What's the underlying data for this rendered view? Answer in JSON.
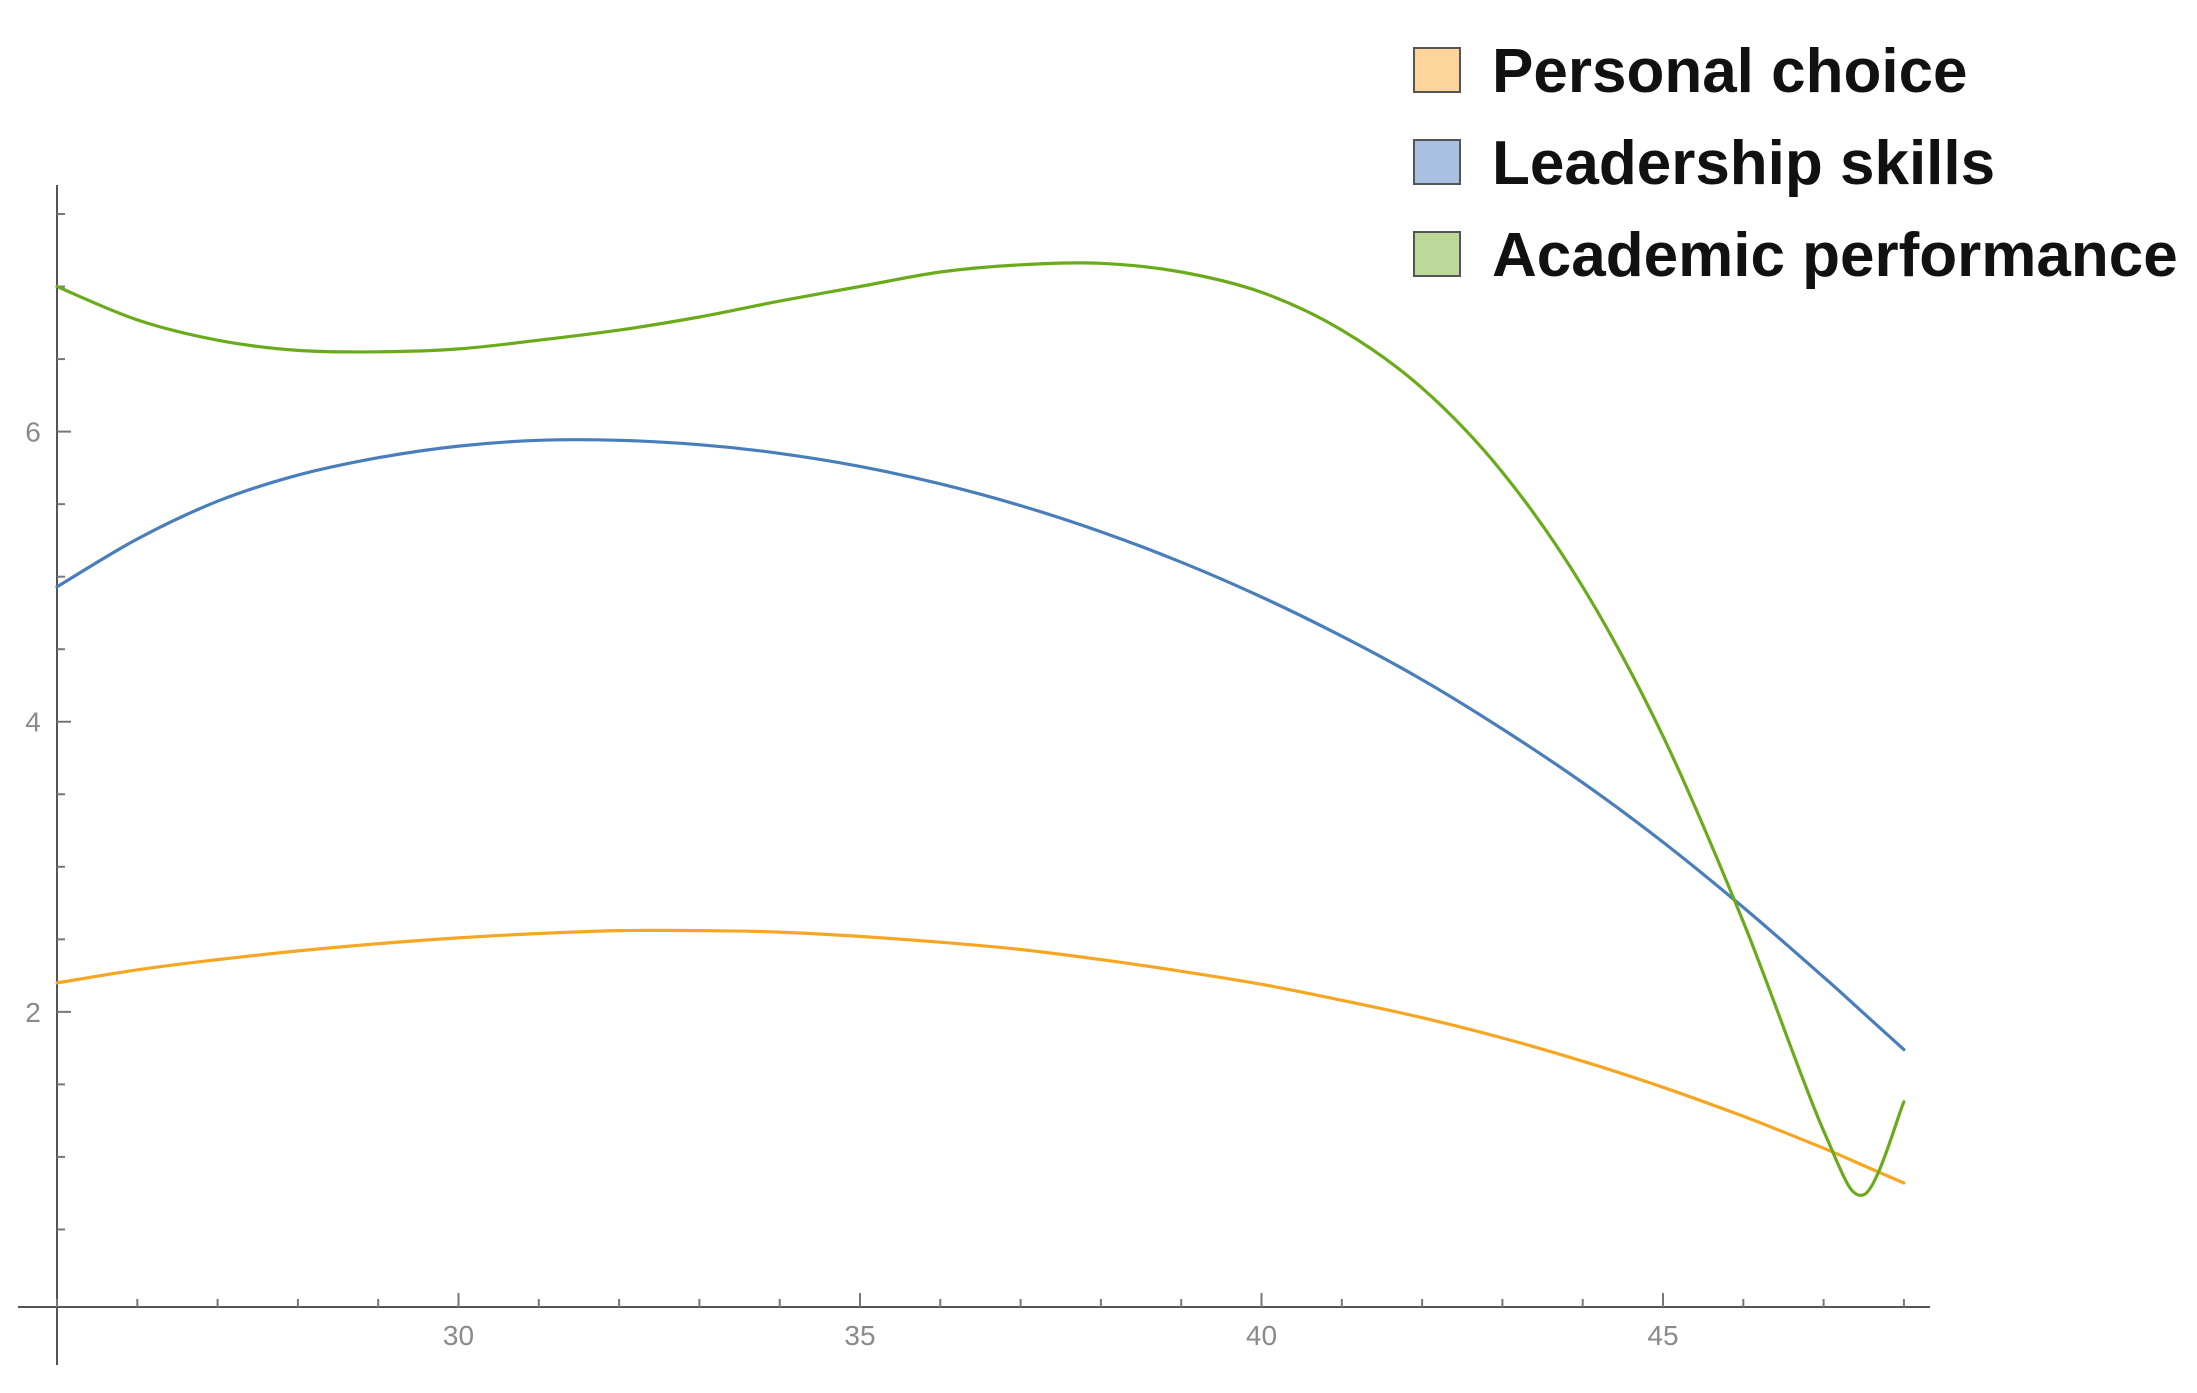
{
  "chart_data": {
    "type": "line",
    "title": "",
    "xlabel": "",
    "ylabel": "",
    "xlim": [
      25,
      48.3
    ],
    "ylim": [
      0,
      7.7
    ],
    "x_ticks": [
      30,
      35,
      40,
      45
    ],
    "y_ticks": [
      2,
      4,
      6
    ],
    "x_tick_labels": [
      "30",
      "35",
      "40",
      "45"
    ],
    "y_tick_labels": [
      "2",
      "4",
      "6"
    ],
    "x_minor_step": 1,
    "y_minor_step": 0.5,
    "grid": false,
    "legend_position": "top-right",
    "x": [
      25,
      26,
      27,
      28,
      29,
      30,
      31,
      32,
      33,
      34,
      35,
      36,
      37,
      38,
      39,
      40,
      41,
      42,
      43,
      44,
      45,
      46,
      47,
      47.5,
      48
    ],
    "series": [
      {
        "name": "Personal choice",
        "color": "#f5a623",
        "legend_fill": "#fdd59a",
        "values": [
          2.2,
          2.29,
          2.36,
          2.42,
          2.47,
          2.51,
          2.54,
          2.56,
          2.56,
          2.55,
          2.52,
          2.48,
          2.43,
          2.36,
          2.28,
          2.19,
          2.08,
          1.96,
          1.82,
          1.66,
          1.48,
          1.28,
          1.06,
          0.94,
          0.82
        ]
      },
      {
        "name": "Leadership skills",
        "color": "#4a7ebb",
        "legend_fill": "#a9c1e2",
        "values": [
          4.93,
          5.26,
          5.52,
          5.7,
          5.82,
          5.9,
          5.94,
          5.94,
          5.91,
          5.85,
          5.76,
          5.64,
          5.49,
          5.31,
          5.1,
          4.86,
          4.59,
          4.29,
          3.95,
          3.58,
          3.17,
          2.72,
          2.24,
          1.99,
          1.74
        ]
      },
      {
        "name": "Academic performance",
        "color": "#6aab1c",
        "legend_fill": "#bcd99a",
        "values": [
          7.0,
          6.77,
          6.63,
          6.56,
          6.55,
          6.57,
          6.63,
          6.7,
          6.79,
          6.9,
          7.0,
          7.1,
          7.15,
          7.16,
          7.1,
          6.96,
          6.7,
          6.3,
          5.72,
          4.93,
          3.9,
          2.62,
          1.18,
          0.74,
          1.38
        ]
      }
    ]
  }
}
